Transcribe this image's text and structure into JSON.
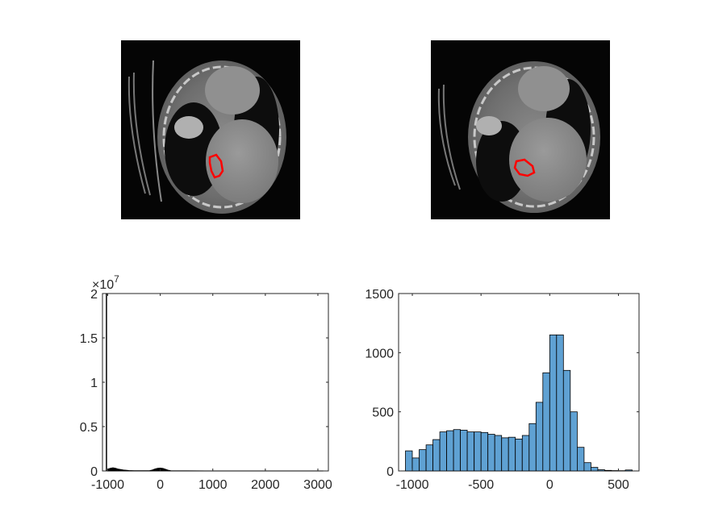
{
  "chart_data": [
    {
      "type": "image",
      "content": "CT axial slice with red region-of-interest contour"
    },
    {
      "type": "image",
      "content": "CT axial slice with red region-of-interest contour"
    },
    {
      "type": "line",
      "xlim": [
        -1100,
        3200
      ],
      "ylim": [
        0,
        2
      ],
      "y_exponent_label": "×10",
      "y_exponent_power": "7",
      "xticks": [
        "-1000",
        "0",
        "1000",
        "2000",
        "3000"
      ],
      "yticks": [
        "0",
        "0.5",
        "1",
        "1.5",
        "2"
      ],
      "xtick_values": [
        -1000,
        0,
        1000,
        2000,
        3000
      ],
      "ytick_values": [
        0,
        0.5,
        1,
        1.5,
        2
      ],
      "x": [
        -1024,
        -1000,
        -950,
        -900,
        -850,
        -800,
        -700,
        -600,
        -500,
        -400,
        -300,
        -200,
        -150,
        -100,
        -50,
        0,
        50,
        100,
        150,
        200,
        300,
        500,
        1000,
        1500,
        2000,
        2500,
        3000,
        3100
      ],
      "y": [
        2.0,
        0.02,
        0.03,
        0.035,
        0.03,
        0.02,
        0.01,
        0.005,
        0.003,
        0.002,
        0.002,
        0.004,
        0.01,
        0.022,
        0.03,
        0.032,
        0.028,
        0.018,
        0.008,
        0.003,
        0.001,
        0.0005,
        0.0003,
        0.0002,
        0.0001,
        0.0001,
        0.0001,
        0.0001
      ],
      "grid": false,
      "color": "#000000"
    },
    {
      "type": "bar",
      "subtype": "histogram",
      "xlim": [
        -1100,
        650
      ],
      "ylim": [
        0,
        1500
      ],
      "xticks": [
        "-1000",
        "-500",
        "0",
        "500"
      ],
      "yticks": [
        "0",
        "500",
        "1000",
        "1500"
      ],
      "xtick_values": [
        -1000,
        -500,
        0,
        500
      ],
      "ytick_values": [
        0,
        500,
        1000,
        1500
      ],
      "bin_edges": [
        -1050,
        -1000,
        -950,
        -900,
        -850,
        -800,
        -750,
        -700,
        -650,
        -600,
        -550,
        -500,
        -450,
        -400,
        -350,
        -300,
        -250,
        -200,
        -150,
        -100,
        -50,
        0,
        50,
        100,
        150,
        200,
        250,
        300,
        350,
        400,
        450,
        500,
        550,
        600
      ],
      "values": [
        170,
        110,
        180,
        220,
        265,
        330,
        340,
        350,
        345,
        330,
        330,
        325,
        310,
        300,
        280,
        285,
        270,
        300,
        400,
        580,
        830,
        1150,
        1150,
        850,
        500,
        200,
        70,
        30,
        10,
        5,
        3,
        2,
        8
      ],
      "bar_color": "#5fa1d3",
      "edge_color": "#000000",
      "grid": false
    }
  ]
}
